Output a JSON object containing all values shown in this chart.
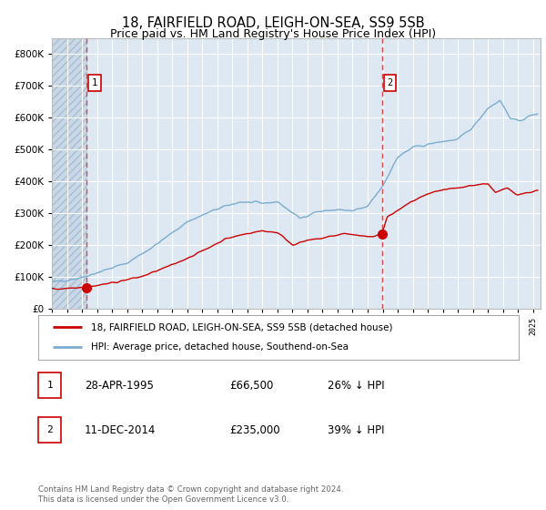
{
  "title": "18, FAIRFIELD ROAD, LEIGH-ON-SEA, SS9 5SB",
  "subtitle": "Price paid vs. HM Land Registry's House Price Index (HPI)",
  "title_fontsize": 10.5,
  "subtitle_fontsize": 9,
  "sale1_price": 66500,
  "sale1_label": "1",
  "sale1_year": 1995.32,
  "sale2_price": 235000,
  "sale2_label": "2",
  "sale2_year": 2014.95,
  "legend_line1": "18, FAIRFIELD ROAD, LEIGH-ON-SEA, SS9 5SB (detached house)",
  "legend_line2": "HPI: Average price, detached house, Southend-on-Sea",
  "table_row1": [
    "1",
    "28-APR-1995",
    "£66,500",
    "26% ↓ HPI"
  ],
  "table_row2": [
    "2",
    "11-DEC-2014",
    "£235,000",
    "39% ↓ HPI"
  ],
  "footer": "Contains HM Land Registry data © Crown copyright and database right 2024.\nThis data is licensed under the Open Government Licence v3.0.",
  "red_line_color": "#cc0000",
  "blue_line_color": "#7aadcf",
  "dashed_vline_color": "#dd4444",
  "bg_color": "#dde8f2",
  "grid_color": "#ffffff",
  "ylim": [
    0,
    850000
  ],
  "xlim_start": 1993.0,
  "xlim_end": 2025.5,
  "yticks": [
    0,
    100000,
    200000,
    300000,
    400000,
    500000,
    600000,
    700000,
    800000
  ]
}
